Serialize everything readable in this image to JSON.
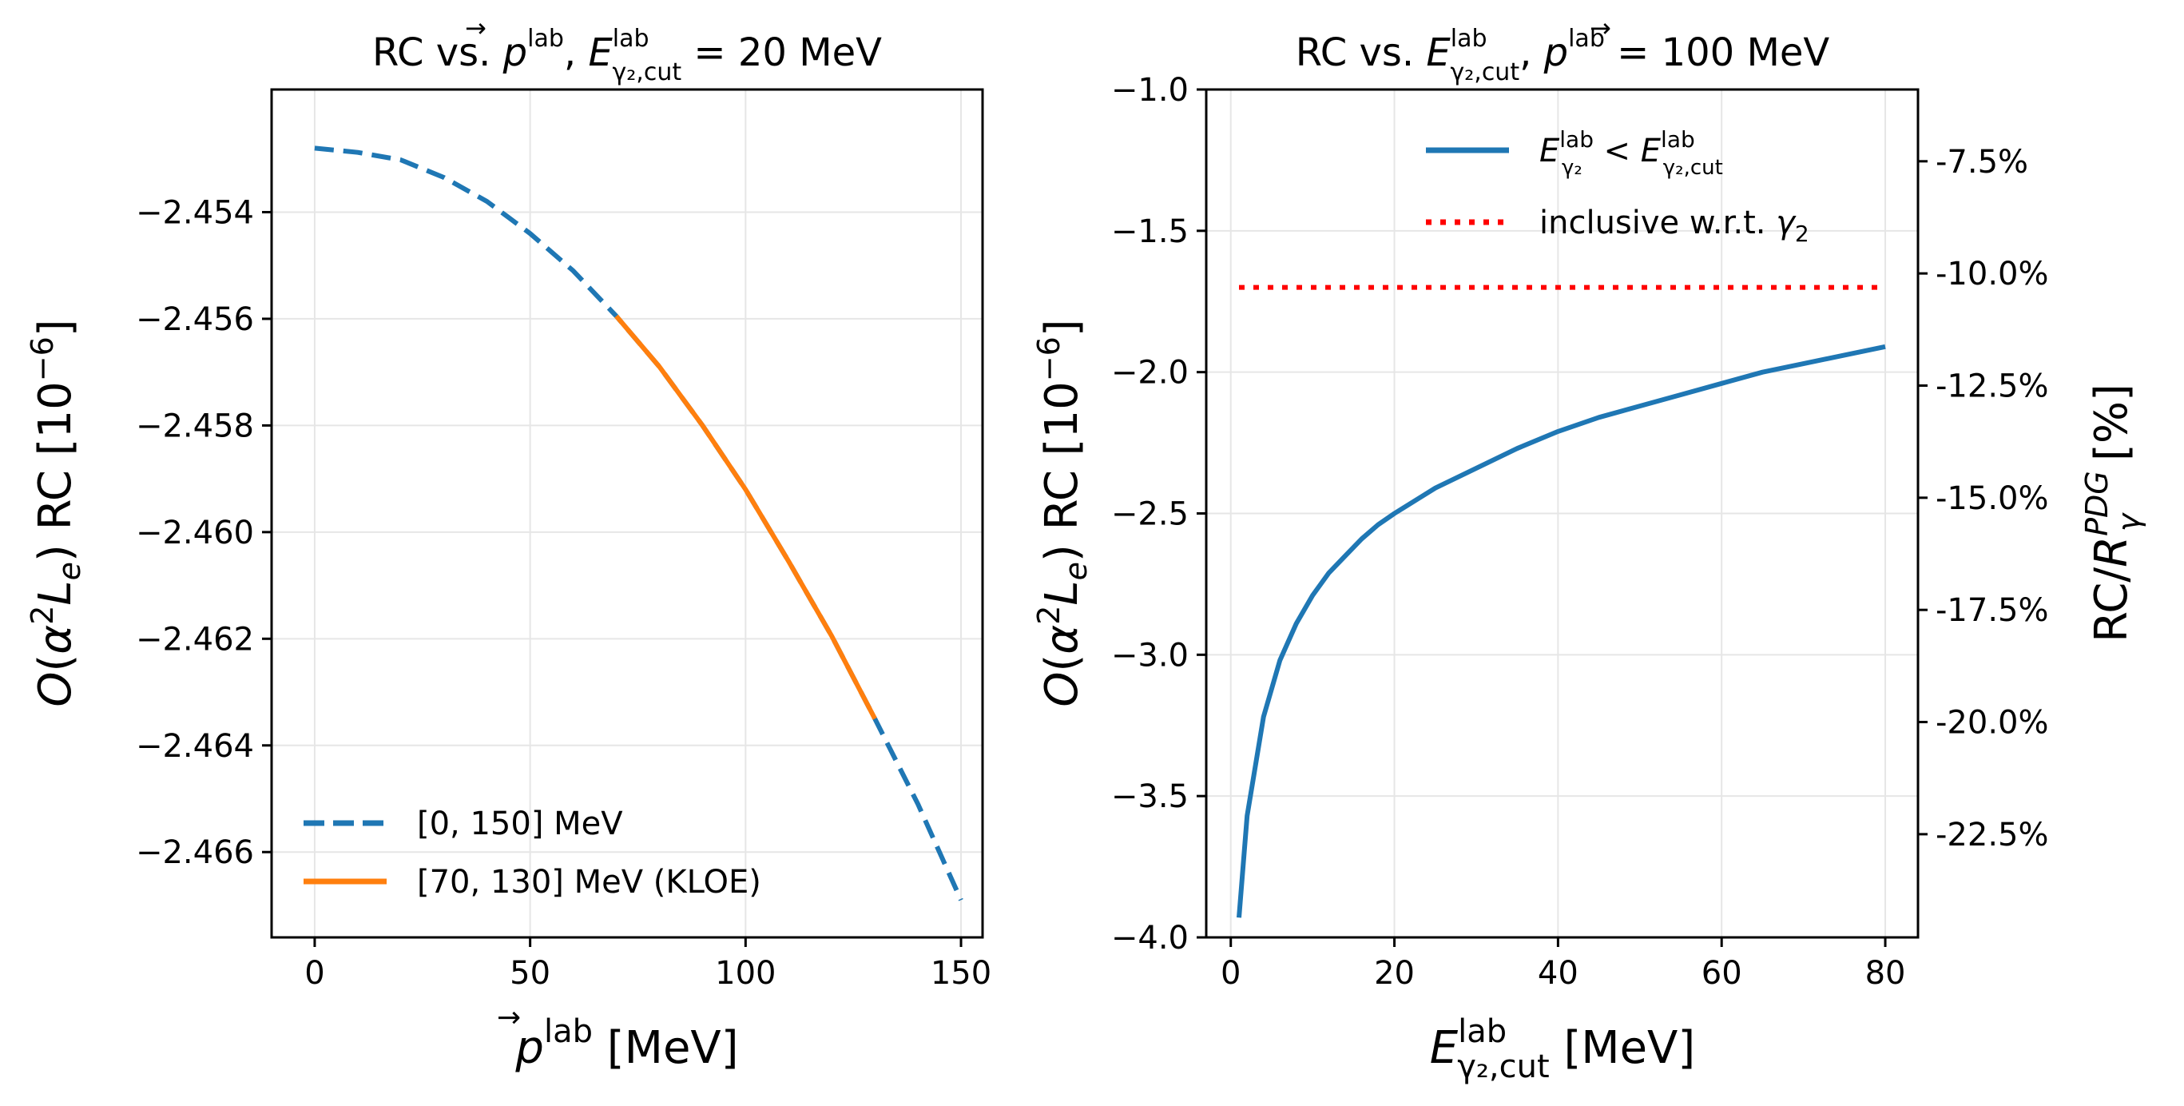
{
  "chart_data": [
    {
      "type": "line",
      "title": "RC vs. p⃗lab, Eγ2,cutlab = 20 MeV",
      "xlabel": "p⃗lab [MeV]",
      "ylabel": "O(α²Le) RC [10⁻⁶]",
      "xlim": [
        -10,
        155
      ],
      "ylim": [
        -2.4676,
        -2.4517
      ],
      "xticks": [
        0,
        50,
        100,
        150
      ],
      "xtick_labels": [
        "0",
        "50",
        "100",
        "150"
      ],
      "yticks": [
        -2.454,
        -2.456,
        -2.458,
        -2.46,
        -2.462,
        -2.464,
        -2.466
      ],
      "ytick_labels": [
        "−2.454",
        "−2.456",
        "−2.458",
        "−2.460",
        "−2.462",
        "−2.464",
        "−2.466"
      ],
      "grid": true,
      "legend_position": "lower-left",
      "series": [
        {
          "name": "[0, 150] MeV",
          "style": "dashed",
          "color": "#1f77b4",
          "x": [
            0,
            10,
            20,
            30,
            40,
            50,
            60,
            70,
            80,
            90,
            100,
            110,
            120,
            130,
            140,
            150
          ],
          "y": [
            -2.4528,
            -2.45288,
            -2.45302,
            -2.45335,
            -2.4538,
            -2.4544,
            -2.4551,
            -2.45595,
            -2.4569,
            -2.458,
            -2.4592,
            -2.46055,
            -2.46195,
            -2.4635,
            -2.4651,
            -2.4669
          ]
        },
        {
          "name": "[70, 130] MeV (KLOE)",
          "style": "solid",
          "color": "#ff7f0e",
          "x": [
            70,
            80,
            90,
            100,
            110,
            120,
            130
          ],
          "y": [
            -2.45595,
            -2.4569,
            -2.458,
            -2.4592,
            -2.46055,
            -2.46195,
            -2.4635
          ]
        }
      ]
    },
    {
      "type": "line",
      "title": "RC vs. Eγ2,cutlab, p⃗lab = 100 MeV",
      "xlabel": "Eγ2,cutlab [MeV]",
      "ylabel": "O(α²Le) RC [10⁻⁶]",
      "ylabel_right": "RC/RγPDG [%]",
      "xlim": [
        -3,
        84
      ],
      "ylim": [
        -4.0,
        -1.0
      ],
      "xticks": [
        0,
        20,
        40,
        60,
        80
      ],
      "xtick_labels": [
        "0",
        "20",
        "40",
        "60",
        "80"
      ],
      "yticks": [
        -1.0,
        -1.5,
        -2.0,
        -2.5,
        -3.0,
        -3.5,
        -4.0
      ],
      "ytick_labels": [
        "−1.0",
        "−1.5",
        "−2.0",
        "−2.5",
        "−3.0",
        "−3.5",
        "−4.0"
      ],
      "right_yticks": [
        -7.5,
        -10.0,
        -12.5,
        -15.0,
        -17.5,
        -20.0,
        -22.5
      ],
      "right_ytick_labels": [
        "-7.5%",
        "-10.0%",
        "-12.5%",
        "-15.0%",
        "-17.5%",
        "-20.0%",
        "-22.5%"
      ],
      "right_ylim": [
        -5.9,
        -24.8
      ],
      "grid": true,
      "legend_position": "upper-center",
      "series": [
        {
          "name": "Eγ2lab < Eγ2,cutlab",
          "style": "solid",
          "color": "#1f77b4",
          "x": [
            1,
            2,
            4,
            6,
            8,
            10,
            12,
            14,
            16,
            18,
            20,
            25,
            30,
            35,
            40,
            45,
            50,
            55,
            60,
            65,
            70,
            75,
            80
          ],
          "y": [
            -3.93,
            -3.57,
            -3.22,
            -3.02,
            -2.89,
            -2.79,
            -2.71,
            -2.65,
            -2.59,
            -2.54,
            -2.5,
            -2.41,
            -2.34,
            -2.27,
            -2.21,
            -2.16,
            -2.12,
            -2.08,
            -2.04,
            -2.0,
            -1.97,
            -1.94,
            -1.91
          ]
        },
        {
          "name": "inclusive w.r.t. γ2",
          "style": "dotted",
          "color": "#ff0000",
          "x": [
            1,
            80
          ],
          "y": [
            -1.7,
            -1.7
          ]
        }
      ]
    }
  ]
}
